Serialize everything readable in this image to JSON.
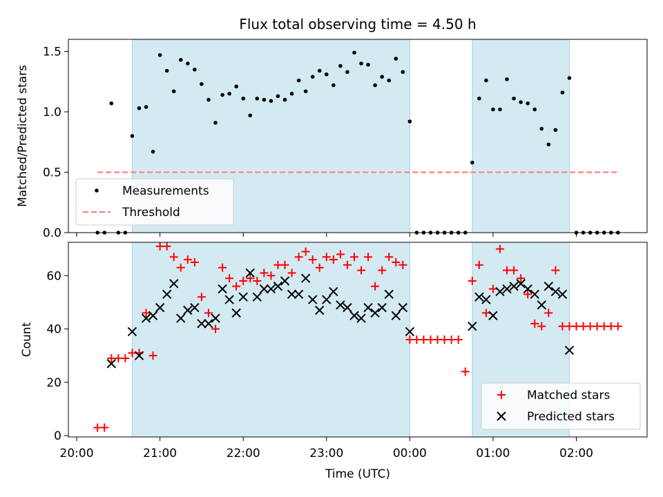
{
  "chart_data": [
    {
      "type": "scatter",
      "title": "Flux total observing time = 4.50 h",
      "ylabel": "Matched/Predicted stars",
      "xlim_hours": [
        19.9,
        26.85
      ],
      "ylim": [
        0,
        1.6
      ],
      "yticks": [
        0.0,
        0.5,
        1.0,
        1.5
      ],
      "ytick_labels": [
        "0.0",
        "0.5",
        "1.0",
        "1.5"
      ],
      "shaded_intervals": [
        [
          "20:40",
          "00:00"
        ],
        [
          "00:45",
          "01:55"
        ]
      ],
      "shade_color": "#add8e6",
      "legend_position": "lower-left",
      "series": [
        {
          "name": "Measurements",
          "marker": "dot",
          "color": "#000000",
          "x": [
            "20:15",
            "20:20",
            "20:25",
            "20:30",
            "20:35",
            "20:40",
            "20:45",
            "20:50",
            "20:55",
            "21:00",
            "21:05",
            "21:10",
            "21:15",
            "21:20",
            "21:25",
            "21:30",
            "21:35",
            "21:40",
            "21:45",
            "21:50",
            "21:55",
            "22:00",
            "22:05",
            "22:10",
            "22:15",
            "22:20",
            "22:25",
            "22:30",
            "22:35",
            "22:40",
            "22:45",
            "22:50",
            "22:55",
            "23:00",
            "23:05",
            "23:10",
            "23:15",
            "23:20",
            "23:25",
            "23:30",
            "23:35",
            "23:40",
            "23:45",
            "23:50",
            "23:55",
            "00:00",
            "00:05",
            "00:10",
            "00:15",
            "00:20",
            "00:25",
            "00:30",
            "00:35",
            "00:40",
            "00:45",
            "00:50",
            "00:55",
            "01:00",
            "01:05",
            "01:10",
            "01:15",
            "01:20",
            "01:25",
            "01:30",
            "01:35",
            "01:40",
            "01:45",
            "01:50",
            "01:55",
            "02:00",
            "02:05",
            "02:10",
            "02:15",
            "02:20",
            "02:25",
            "02:30"
          ],
          "y": [
            0,
            0,
            1.07,
            0,
            0,
            0.8,
            1.03,
            1.04,
            0.67,
            1.47,
            1.34,
            1.17,
            1.43,
            1.4,
            1.35,
            1.23,
            1.1,
            0.91,
            1.14,
            1.15,
            1.21,
            1.11,
            0.97,
            1.11,
            1.1,
            1.09,
            1.13,
            1.1,
            1.15,
            1.26,
            1.17,
            1.29,
            1.34,
            1.31,
            1.22,
            1.38,
            1.33,
            1.49,
            1.4,
            1.39,
            1.22,
            1.29,
            1.26,
            1.44,
            1.33,
            0.92,
            0,
            0,
            0,
            0,
            0,
            0,
            0,
            0,
            0.58,
            1.11,
            1.26,
            1.02,
            1.02,
            1.27,
            1.11,
            1.08,
            1.07,
            1.02,
            0.86,
            0.73,
            0.85,
            1.16,
            1.28,
            0,
            0,
            0,
            0,
            0,
            0,
            0
          ]
        },
        {
          "name": "Threshold",
          "marker": "dashed-line",
          "color": "#ff7f7f",
          "x": [
            "20:15",
            "02:30"
          ],
          "y": [
            0.5,
            0.5
          ]
        }
      ]
    },
    {
      "type": "scatter",
      "ylabel": "Count",
      "xlabel": "Time (UTC)",
      "xlim_hours": [
        19.9,
        26.85
      ],
      "ylim": [
        -0.5,
        72.5
      ],
      "yticks": [
        0,
        20,
        40,
        60
      ],
      "ytick_labels": [
        "0",
        "20",
        "40",
        "60"
      ],
      "xticks": [
        "20:00",
        "21:00",
        "22:00",
        "23:00",
        "00:00",
        "01:00",
        "02:00"
      ],
      "shaded_intervals": [
        [
          "20:40",
          "00:00"
        ],
        [
          "00:45",
          "01:55"
        ]
      ],
      "shade_color": "#add8e6",
      "legend_position": "lower-right",
      "series": [
        {
          "name": "Matched stars",
          "marker": "plus",
          "color": "#ff0000",
          "x": [
            "20:15",
            "20:20",
            "20:25",
            "20:30",
            "20:35",
            "20:40",
            "20:45",
            "20:50",
            "20:55",
            "21:00",
            "21:05",
            "21:10",
            "21:15",
            "21:20",
            "21:25",
            "21:30",
            "21:35",
            "21:40",
            "21:45",
            "21:50",
            "21:55",
            "22:00",
            "22:05",
            "22:10",
            "22:15",
            "22:20",
            "22:25",
            "22:30",
            "22:35",
            "22:40",
            "22:45",
            "22:50",
            "22:55",
            "23:00",
            "23:05",
            "23:10",
            "23:15",
            "23:20",
            "23:25",
            "23:30",
            "23:35",
            "23:40",
            "23:45",
            "23:50",
            "23:55",
            "00:00",
            "00:05",
            "00:10",
            "00:15",
            "00:20",
            "00:25",
            "00:30",
            "00:35",
            "00:40",
            "00:45",
            "00:50",
            "00:55",
            "01:00",
            "01:05",
            "01:10",
            "01:15",
            "01:20",
            "01:25",
            "01:30",
            "01:35",
            "01:40",
            "01:45",
            "01:50",
            "01:55",
            "02:00",
            "02:05",
            "02:10",
            "02:15",
            "02:20",
            "02:25",
            "02:30"
          ],
          "y": [
            3,
            3,
            29,
            29,
            29,
            31,
            31,
            46,
            30,
            71,
            71,
            67,
            63,
            66,
            65,
            52,
            46,
            40,
            63,
            59,
            56,
            58,
            59,
            58,
            61,
            60,
            64,
            64,
            61,
            67,
            69,
            66,
            63,
            67,
            66,
            68,
            64,
            67,
            62,
            67,
            56,
            62,
            67,
            65,
            64,
            36,
            36,
            36,
            36,
            36,
            36,
            36,
            36,
            24,
            58,
            64,
            46,
            55,
            70,
            62,
            62,
            59,
            53,
            42,
            41,
            46,
            62,
            41,
            41,
            41,
            41,
            41,
            41,
            41,
            41,
            41
          ]
        },
        {
          "name": "Predicted stars",
          "marker": "x",
          "color": "#000000",
          "x": [
            "20:25",
            "20:40",
            "20:45",
            "20:50",
            "20:55",
            "21:00",
            "21:05",
            "21:10",
            "21:15",
            "21:20",
            "21:25",
            "21:30",
            "21:35",
            "21:40",
            "21:45",
            "21:50",
            "21:55",
            "22:00",
            "22:05",
            "22:10",
            "22:15",
            "22:20",
            "22:25",
            "22:30",
            "22:35",
            "22:40",
            "22:45",
            "22:50",
            "22:55",
            "23:00",
            "23:05",
            "23:10",
            "23:15",
            "23:20",
            "23:25",
            "23:30",
            "23:35",
            "23:40",
            "23:45",
            "23:50",
            "23:55",
            "00:00",
            "00:45",
            "00:50",
            "00:55",
            "01:00",
            "01:05",
            "01:10",
            "01:15",
            "01:20",
            "01:25",
            "01:30",
            "01:35",
            "01:40",
            "01:45",
            "01:50",
            "01:55"
          ],
          "y": [
            27,
            39,
            30,
            44,
            45,
            48,
            53,
            57,
            44,
            47,
            48,
            42,
            42,
            44,
            55,
            51,
            46,
            52,
            61,
            52,
            55,
            55,
            56,
            58,
            53,
            53,
            59,
            51,
            47,
            51,
            54,
            49,
            48,
            45,
            44,
            48,
            46,
            48,
            53,
            45,
            48,
            39,
            41,
            52,
            51,
            45,
            54,
            55,
            56,
            57,
            55,
            53,
            49,
            56,
            54,
            53,
            32
          ]
        }
      ]
    }
  ]
}
